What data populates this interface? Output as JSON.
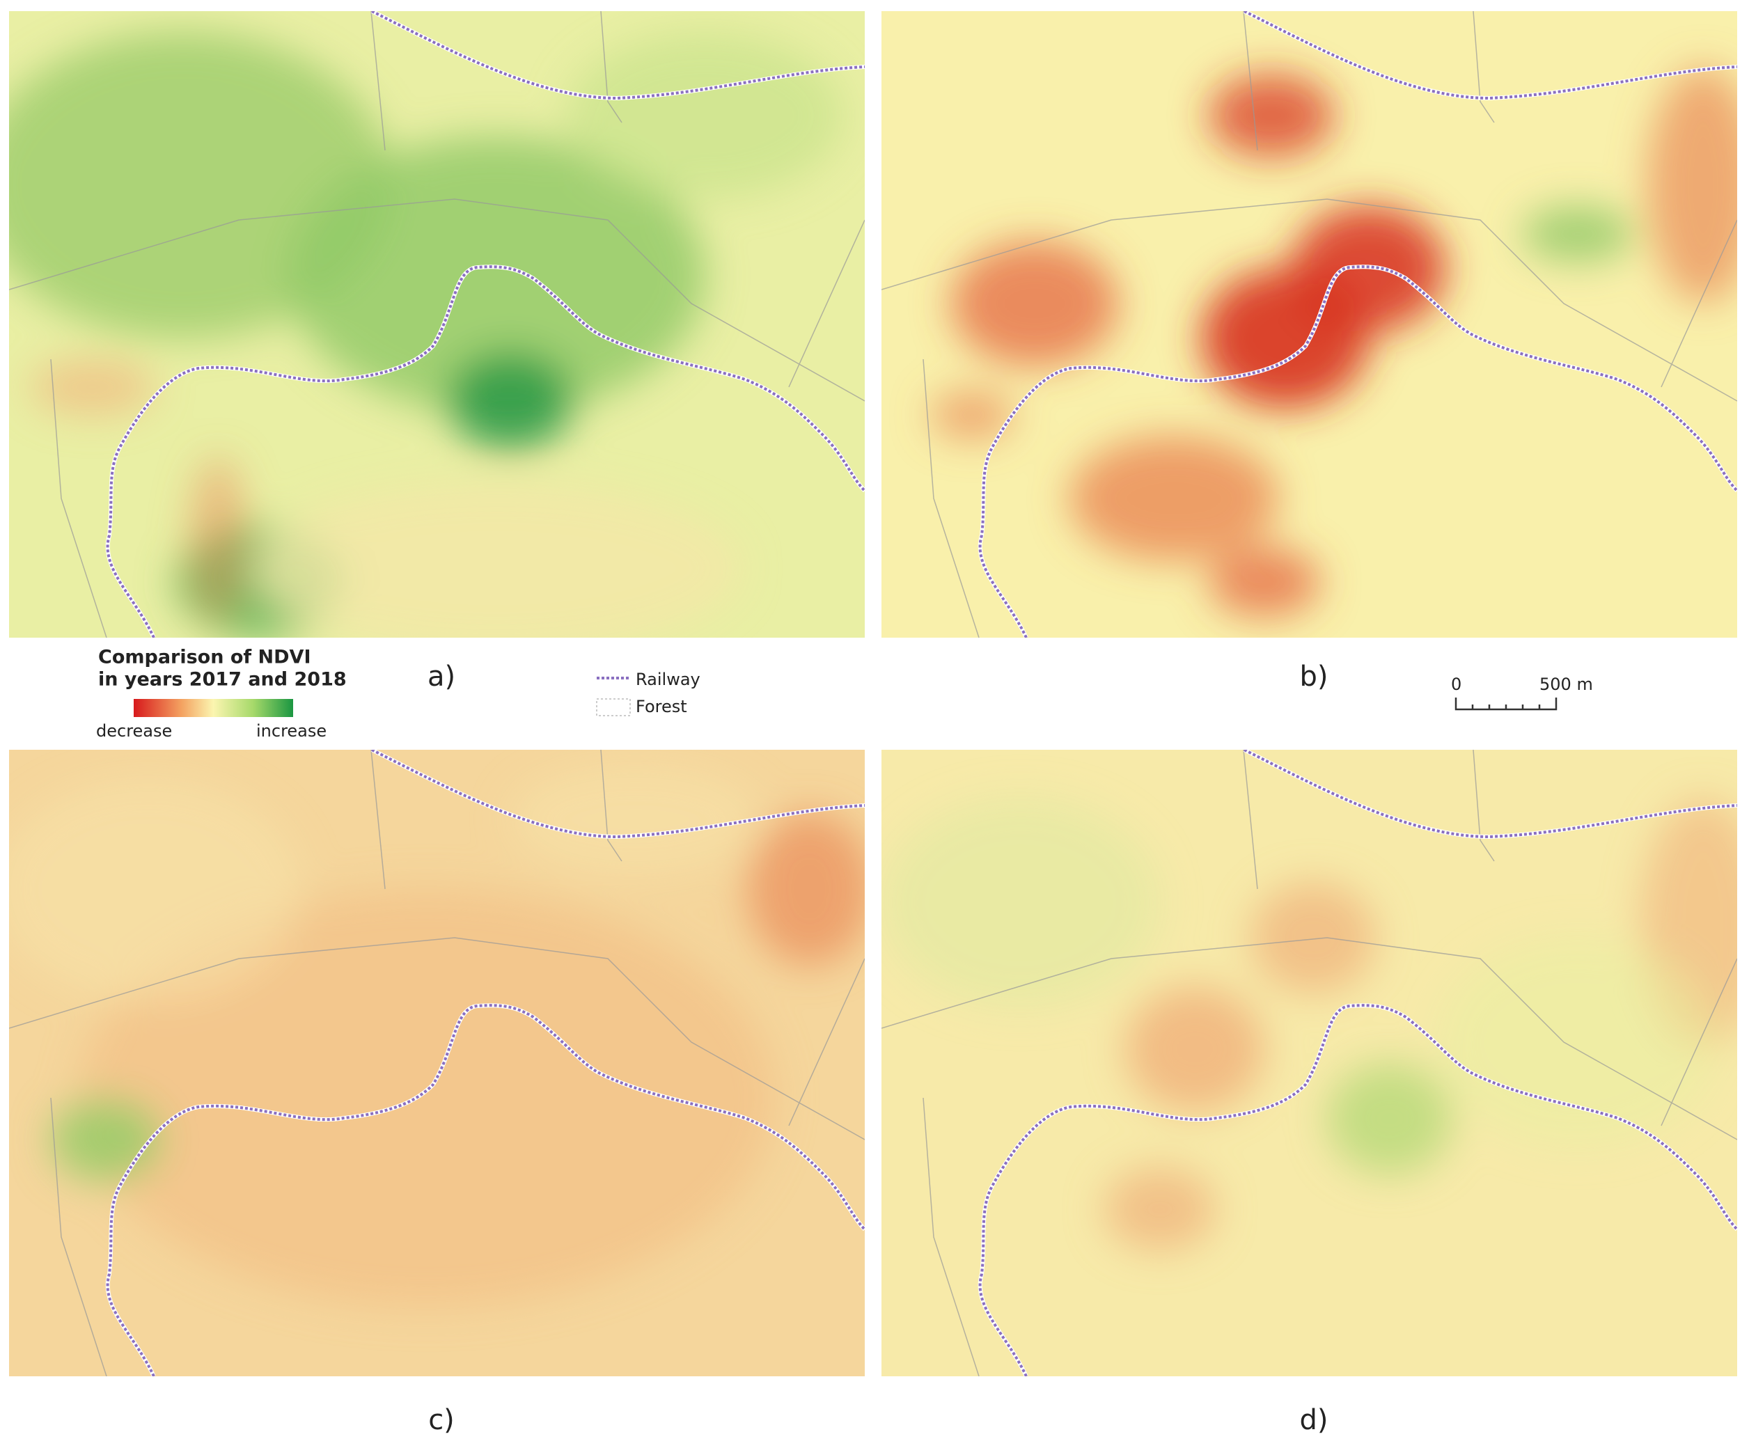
{
  "legend": {
    "title_lines": [
      "Comparison of NDVI",
      "in years 2017 and 2018"
    ],
    "low_label": "decrease",
    "high_label": "increase",
    "railway": "Railway",
    "forest": "Forest"
  },
  "scale_bar": {
    "start": "0",
    "end": "500 m"
  },
  "panels": [
    {
      "label": "a)"
    },
    {
      "label": "b)"
    },
    {
      "label": "c)"
    },
    {
      "label": "d)"
    }
  ]
}
